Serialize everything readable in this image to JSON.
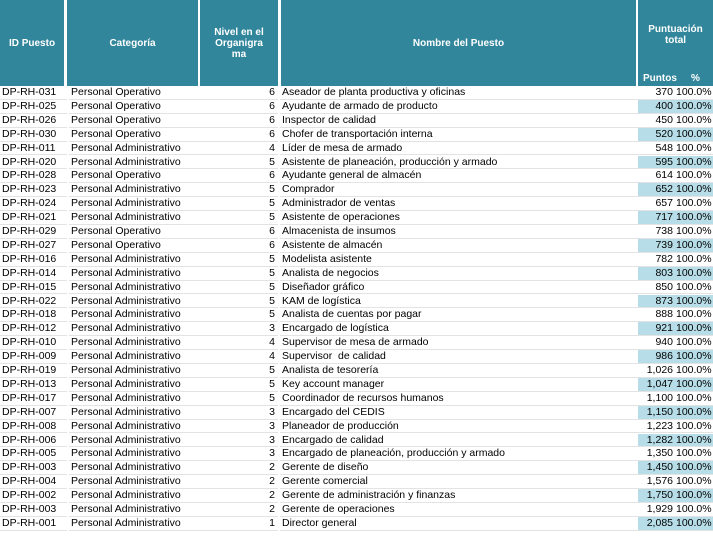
{
  "table": {
    "headers": [
      "ID Puesto",
      "Categoría",
      "Nivel en el Organigrama",
      "Nombre del Puesto",
      "Puntuación total"
    ],
    "sub_headers": [
      "Puntos",
      "%"
    ],
    "rows": [
      [
        "DP-RH-031",
        "Personal Operativo",
        "6",
        "Aseador de planta productiva y oficinas",
        "370",
        "100.0%"
      ],
      [
        "DP-RH-025",
        "Personal Operativo",
        "6",
        "Ayudante de armado de producto",
        "400",
        "100.0%"
      ],
      [
        "DP-RH-026",
        "Personal Operativo",
        "6",
        "Inspector de calidad",
        "450",
        "100.0%"
      ],
      [
        "DP-RH-030",
        "Personal Operativo",
        "6",
        "Chofer de transportación interna",
        "520",
        "100.0%"
      ],
      [
        "DP-RH-011",
        "Personal Administrativo",
        "4",
        "Líder de mesa de armado",
        "548",
        "100.0%"
      ],
      [
        "DP-RH-020",
        "Personal Administrativo",
        "5",
        "Asistente de planeación, producción y armado",
        "595",
        "100.0%"
      ],
      [
        "DP-RH-028",
        "Personal Operativo",
        "6",
        "Ayudante general de almacén",
        "614",
        "100.0%"
      ],
      [
        "DP-RH-023",
        "Personal Administrativo",
        "5",
        "Comprador",
        "652",
        "100.0%"
      ],
      [
        "DP-RH-024",
        "Personal Administrativo",
        "5",
        "Administrador de ventas",
        "657",
        "100.0%"
      ],
      [
        "DP-RH-021",
        "Personal Administrativo",
        "5",
        "Asistente de operaciones",
        "717",
        "100.0%"
      ],
      [
        "DP-RH-029",
        "Personal Operativo",
        "6",
        "Almacenista de insumos",
        "738",
        "100.0%"
      ],
      [
        "DP-RH-027",
        "Personal Operativo",
        "6",
        "Asistente de almacén",
        "739",
        "100.0%"
      ],
      [
        "DP-RH-016",
        "Personal Administrativo",
        "5",
        "Modelista asistente",
        "782",
        "100.0%"
      ],
      [
        "DP-RH-014",
        "Personal Administrativo",
        "5",
        "Analista de negocios",
        "803",
        "100.0%"
      ],
      [
        "DP-RH-015",
        "Personal Administrativo",
        "5",
        "Diseñador gráfico",
        "850",
        "100.0%"
      ],
      [
        "DP-RH-022",
        "Personal Administrativo",
        "5",
        "KAM de logística",
        "873",
        "100.0%"
      ],
      [
        "DP-RH-018",
        "Personal Administrativo",
        "5",
        "Analista de cuentas por pagar",
        "888",
        "100.0%"
      ],
      [
        "DP-RH-012",
        "Personal Administrativo",
        "3",
        "Encargado de logística",
        "921",
        "100.0%"
      ],
      [
        "DP-RH-010",
        "Personal Administrativo",
        "4",
        "Supervisor de mesa de armado",
        "940",
        "100.0%"
      ],
      [
        "DP-RH-009",
        "Personal Administrativo",
        "4",
        "Supervisor  de calidad",
        "986",
        "100.0%"
      ],
      [
        "DP-RH-019",
        "Personal Administrativo",
        "5",
        "Analista de tesorería",
        "1,026",
        "100.0%"
      ],
      [
        "DP-RH-013",
        "Personal Administrativo",
        "5",
        "Key account manager",
        "1,047",
        "100.0%"
      ],
      [
        "DP-RH-017",
        "Personal Administrativo",
        "5",
        "Coordinador de recursos humanos",
        "1,100",
        "100.0%"
      ],
      [
        "DP-RH-007",
        "Personal Administrativo",
        "3",
        "Encargado del CEDIS",
        "1,150",
        "100.0%"
      ],
      [
        "DP-RH-008",
        "Personal Administrativo",
        "3",
        "Planeador de producción",
        "1,223",
        "100.0%"
      ],
      [
        "DP-RH-006",
        "Personal Administrativo",
        "3",
        "Encargado de calidad",
        "1,282",
        "100.0%"
      ],
      [
        "DP-RH-005",
        "Personal Administrativo",
        "3",
        "Encargado de planeación, producción y armado",
        "1,350",
        "100.0%"
      ],
      [
        "DP-RH-003",
        "Personal Administrativo",
        "2",
        "Gerente de diseño",
        "1,450",
        "100.0%"
      ],
      [
        "DP-RH-004",
        "Personal Administrativo",
        "2",
        "Gerente comercial",
        "1,576",
        "100.0%"
      ],
      [
        "DP-RH-002",
        "Personal Administrativo",
        "2",
        "Gerente de administración y finanzas",
        "1,750",
        "100.0%"
      ],
      [
        "DP-RH-003",
        "Personal Administrativo",
        "2",
        "Gerente de operaciones",
        "1,929",
        "100.0%"
      ],
      [
        "DP-RH-001",
        "Personal Administrativo",
        "1",
        "Director general",
        "2,085",
        "100.0%"
      ]
    ]
  }
}
